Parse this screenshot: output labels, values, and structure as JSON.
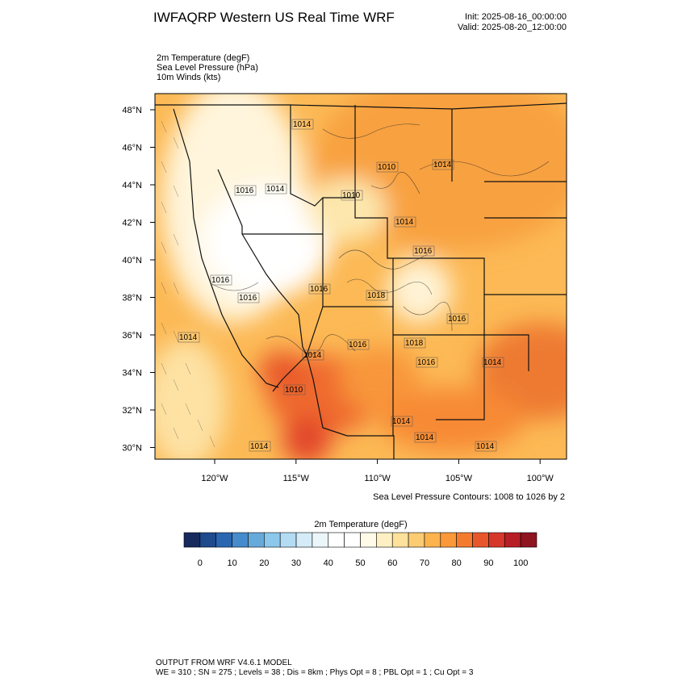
{
  "header": {
    "title": "IWFAQRP Western US Real Time WRF",
    "init": "Init: 2025-08-16_00:00:00",
    "valid": "Valid: 2025-08-20_12:00:00",
    "fields": [
      "2m Temperature   (degF)",
      "Sea Level Pressure   (hPa)",
      "10m Winds   (kts)"
    ]
  },
  "map": {
    "lat_labels": [
      "48°N",
      "46°N",
      "44°N",
      "42°N",
      "40°N",
      "38°N",
      "36°N",
      "34°N",
      "32°N",
      "30°N"
    ],
    "lon_labels": [
      "120°W",
      "115°W",
      "110°W",
      "105°W",
      "100°W"
    ],
    "contour_labels": [
      "1014",
      "1010",
      "1014",
      "1016",
      "1014",
      "1010",
      "1014",
      "1016",
      "1016",
      "1016",
      "1016",
      "1018",
      "1016",
      "1014",
      "1014",
      "1016",
      "1018",
      "1016",
      "1010",
      "1014",
      "1014",
      "1014",
      "1014",
      "1014"
    ],
    "contour_note": "Sea Level Pressure Contours: 1008 to 1026 by 2"
  },
  "colorbar": {
    "title": "2m Temperature  (degF)",
    "ticks": [
      0,
      10,
      20,
      30,
      40,
      50,
      60,
      70,
      80,
      90,
      100
    ],
    "colors": [
      "#162a5c",
      "#1f4a8c",
      "#2b67b1",
      "#468bcb",
      "#66a9db",
      "#8cc7ec",
      "#b3dcf3",
      "#d4ecf8",
      "#ebf6fb",
      "#ffffff",
      "#ffffff",
      "#fffbe8",
      "#fff0c4",
      "#fee19a",
      "#fdcb72",
      "#fdb34c",
      "#fb983a",
      "#f47b2e",
      "#e8572c",
      "#d5372a",
      "#b71d25",
      "#8e1420"
    ]
  },
  "footer": {
    "line1": "OUTPUT FROM WRF V4.6.1 MODEL",
    "line2": "WE = 310 ; SN = 275 ; Levels = 38 ; Dis = 8km ; Phys Opt = 8 ; PBL Opt = 1 ; Cu Opt = 3"
  }
}
